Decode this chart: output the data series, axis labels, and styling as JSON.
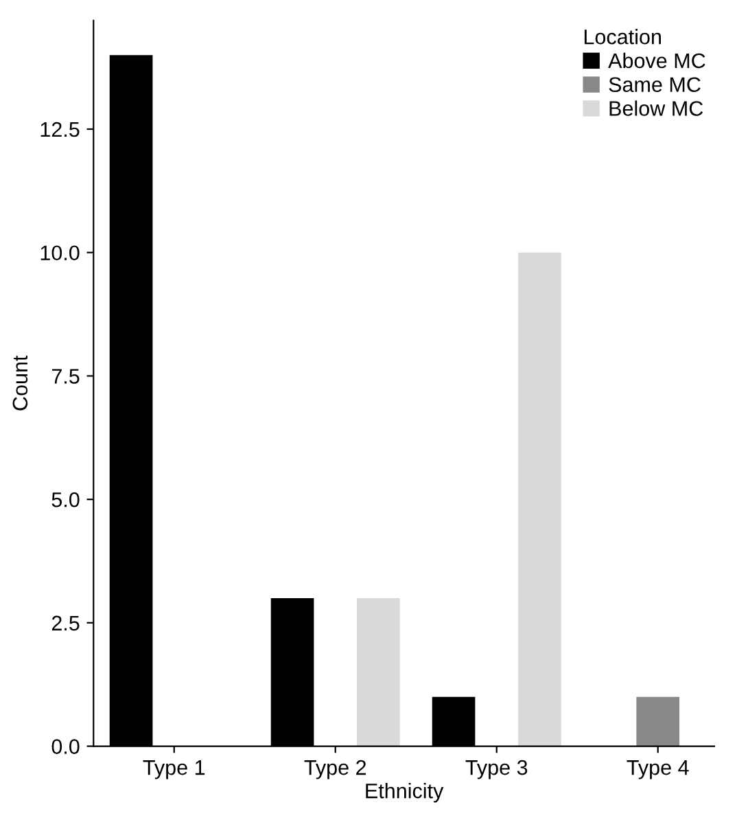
{
  "chart_data": {
    "type": "bar",
    "xlabel": "Ethnicity",
    "ylabel": "Count",
    "legend_title": "Location",
    "categories": [
      "Type 1",
      "Type 2",
      "Type 3",
      "Type 4"
    ],
    "series": [
      {
        "name": "Above MC",
        "color": "#000000",
        "values": [
          14,
          3,
          1,
          0
        ]
      },
      {
        "name": "Same MC",
        "color": "#888888",
        "values": [
          0,
          0,
          0,
          1
        ]
      },
      {
        "name": "Below MC",
        "color": "#d9d9d9",
        "values": [
          0,
          3,
          10,
          0
        ]
      }
    ],
    "ylim": [
      0,
      14.7
    ],
    "yticks": [
      {
        "value": 0,
        "label": "0.0"
      },
      {
        "value": 2.5,
        "label": "2.5"
      },
      {
        "value": 5,
        "label": "5.0"
      },
      {
        "value": 7.5,
        "label": "7.5"
      },
      {
        "value": 10,
        "label": "10.0"
      },
      {
        "value": 12.5,
        "label": "12.5"
      }
    ],
    "grid": false,
    "legend": "top right"
  }
}
